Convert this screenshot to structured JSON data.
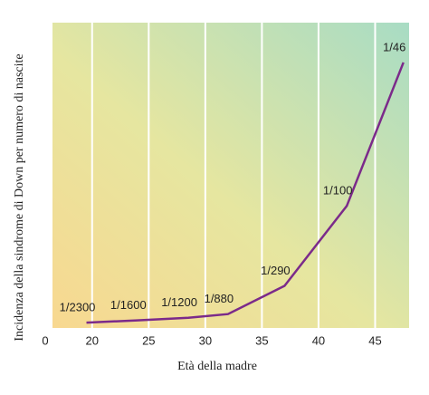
{
  "chart_data": {
    "type": "line",
    "y_label": "Incidenza della sindrome di Down per numero di nascite",
    "x_label": "Età della madre",
    "x": [
      19.5,
      24,
      28.5,
      32,
      37,
      42.5,
      47.5
    ],
    "series": [
      {
        "color": "#7b2a8a",
        "values": [
          0.000435,
          0.000625,
          0.000833,
          0.001136,
          0.003448,
          0.01,
          0.021739
        ],
        "value_labels": [
          "1/2300",
          "1/1600",
          "1/1200",
          "1/880",
          "1/290",
          "1/100",
          "1/46"
        ]
      }
    ],
    "xlim": [
      16.5,
      48
    ],
    "xticks": [
      0,
      20,
      25,
      30,
      35,
      40,
      45
    ],
    "axis_break": true,
    "ylim": [
      0,
      0.025
    ],
    "grid": true
  }
}
